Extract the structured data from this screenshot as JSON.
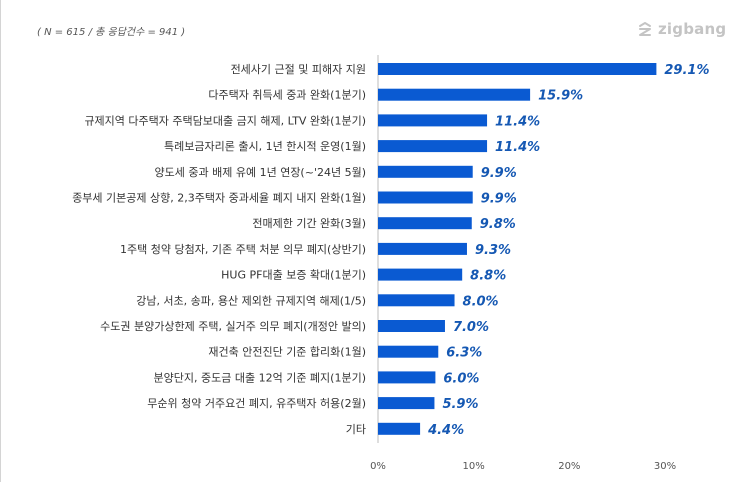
{
  "note": "( N = 615 / 총 응답건수 = 941 )",
  "logo": {
    "text": "zigbang",
    "icon": "zigbang-logo-icon"
  },
  "colors": {
    "bar": "#0a5ad2",
    "value_label": "#1558b3",
    "category_label": "#333333",
    "tick_label": "#555555",
    "grid": "#e6e6e6",
    "axis": "#bdbdbd"
  },
  "chart_data": {
    "type": "bar",
    "orientation": "horizontal",
    "title": "",
    "xlabel": "",
    "ylabel": "",
    "xlim": [
      0,
      30
    ],
    "xticks": [
      "0%",
      "10%",
      "20%",
      "30%"
    ],
    "grid": false,
    "categories": [
      "전세사기 근절 및 피해자 지원",
      "다주택자 취득세 중과 완화(1분기)",
      "규제지역 다주택자 주택담보대출 금지 해제, LTV 완화(1분기)",
      "특례보금자리론 출시, 1년 한시적 운영(1월)",
      "양도세 중과 배제 유예 1년 연장(~'24년 5월)",
      "종부세 기본공제 상향, 2,3주택자 중과세율 폐지 내지 완화(1월)",
      "전매제한 기간 완화(3월)",
      "1주택 청약 당첨자, 기존 주택 처분 의무 폐지(상반기)",
      "HUG PF대출 보증 확대(1분기)",
      "강남, 서초, 송파, 용산 제외한 규제지역 해제(1/5)",
      "수도권 분양가상한제 주택, 실거주 의무 폐지(개정안 발의)",
      "재건축 안전진단 기준 합리화(1월)",
      "분양단지, 중도금 대출 12억 기준 폐지(1분기)",
      "무순위 청약 거주요건 폐지, 유주택자 허용(2월)",
      "기타"
    ],
    "values": [
      29.1,
      15.9,
      11.4,
      11.4,
      9.9,
      9.9,
      9.8,
      9.3,
      8.8,
      8.0,
      7.0,
      6.3,
      6.0,
      5.9,
      4.4
    ],
    "value_labels": [
      "29.1%",
      "15.9%",
      "11.4%",
      "11.4%",
      "9.9%",
      "9.9%",
      "9.8%",
      "9.3%",
      "8.8%",
      "8.0%",
      "7.0%",
      "6.3%",
      "6.0%",
      "5.9%",
      "4.4%"
    ]
  }
}
